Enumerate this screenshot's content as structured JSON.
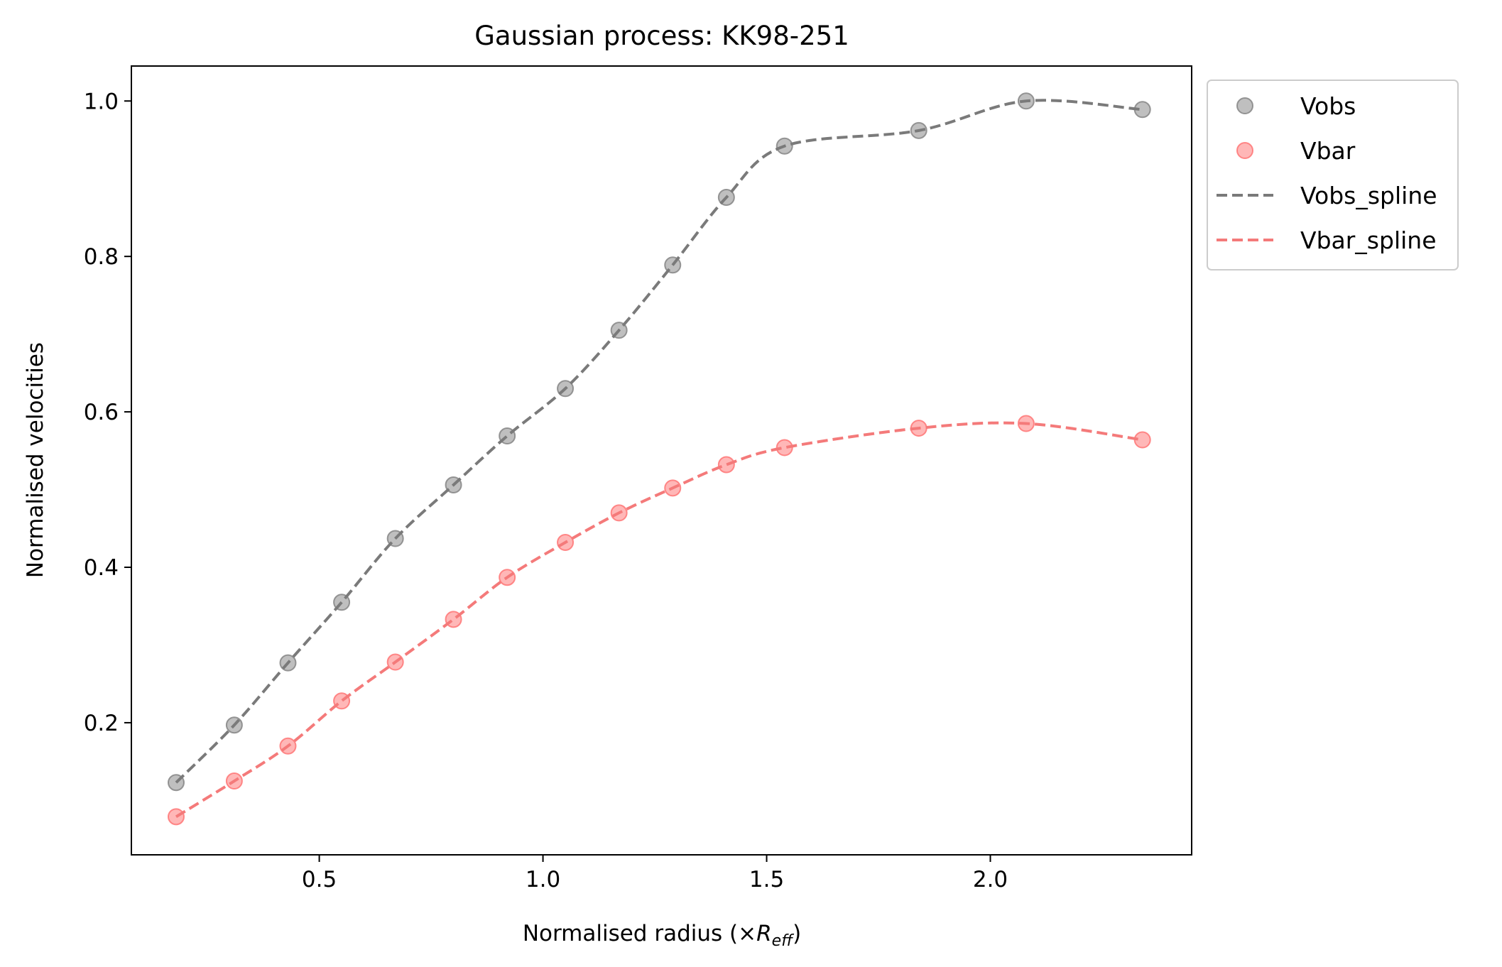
{
  "chart_data": {
    "type": "scatter",
    "title": "Gaussian process: KK98-251",
    "xlabel_prefix": "Normalised radius (×",
    "xlabel_symbol": "R",
    "xlabel_subscript": "eff",
    "xlabel_suffix": ")",
    "ylabel": "Normalised velocities",
    "xlim": [
      0.08,
      2.45
    ],
    "ylim": [
      0.03,
      1.045
    ],
    "xticks": [
      0.5,
      1.0,
      1.5,
      2.0
    ],
    "xtick_labels": [
      "0.5",
      "1.0",
      "1.5",
      "2.0"
    ],
    "yticks": [
      0.2,
      0.4,
      0.6,
      0.8,
      1.0
    ],
    "ytick_labels": [
      "0.2",
      "0.4",
      "0.6",
      "0.8",
      "1.0"
    ],
    "grid": false,
    "legend_position": "outside-top-right",
    "x": [
      0.18,
      0.31,
      0.43,
      0.55,
      0.67,
      0.8,
      0.92,
      1.05,
      1.17,
      1.29,
      1.41,
      1.54,
      1.84,
      2.08,
      2.34
    ],
    "series": [
      {
        "name": "Vobs",
        "kind": "scatter",
        "color": "#808080",
        "values": [
          0.123,
          0.197,
          0.277,
          0.355,
          0.437,
          0.506,
          0.569,
          0.63,
          0.705,
          0.789,
          0.876,
          0.942,
          0.962,
          1.0,
          0.989
        ]
      },
      {
        "name": "Vbar",
        "kind": "scatter",
        "color": "#ff6f6f",
        "values": [
          0.079,
          0.125,
          0.17,
          0.228,
          0.278,
          0.333,
          0.387,
          0.432,
          0.47,
          0.502,
          0.532,
          0.554,
          0.579,
          0.585,
          0.564
        ]
      },
      {
        "name": "Vobs_spline",
        "kind": "line",
        "style": "dashed",
        "color": "#7a7a7a",
        "values": [
          0.123,
          0.197,
          0.277,
          0.355,
          0.437,
          0.506,
          0.569,
          0.63,
          0.705,
          0.789,
          0.876,
          0.942,
          0.962,
          1.0,
          0.989
        ]
      },
      {
        "name": "Vbar_spline",
        "kind": "line",
        "style": "dashed",
        "color": "#f47a7a",
        "values": [
          0.079,
          0.125,
          0.17,
          0.228,
          0.278,
          0.333,
          0.387,
          0.432,
          0.47,
          0.502,
          0.532,
          0.554,
          0.579,
          0.585,
          0.564
        ]
      }
    ]
  }
}
